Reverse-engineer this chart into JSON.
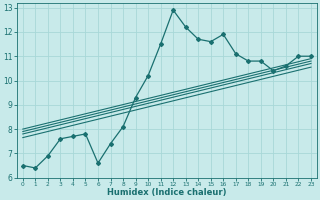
{
  "xlabel": "Humidex (Indice chaleur)",
  "ylabel": "",
  "bg_color": "#c8eaea",
  "grid_color": "#a8d8d8",
  "line_color": "#1a7070",
  "xlim": [
    -0.5,
    23.5
  ],
  "ylim": [
    6,
    13.2
  ],
  "yticks": [
    6,
    7,
    8,
    9,
    10,
    11,
    12,
    13
  ],
  "xticks": [
    0,
    1,
    2,
    3,
    4,
    5,
    6,
    7,
    8,
    9,
    10,
    11,
    12,
    13,
    14,
    15,
    16,
    17,
    18,
    19,
    20,
    21,
    22,
    23
  ],
  "main_x": [
    0,
    1,
    2,
    3,
    4,
    5,
    6,
    7,
    8,
    9,
    10,
    11,
    12,
    13,
    14,
    15,
    16,
    17,
    18,
    19,
    20,
    21,
    22,
    23
  ],
  "main_y": [
    6.5,
    6.4,
    6.9,
    7.6,
    7.7,
    7.8,
    6.6,
    7.4,
    8.1,
    9.3,
    10.2,
    11.5,
    12.9,
    12.2,
    11.7,
    11.6,
    11.9,
    11.1,
    10.8,
    10.8,
    10.4,
    10.6,
    11.0,
    11.0
  ],
  "reg_lines": [
    {
      "x": [
        0,
        23
      ],
      "y": [
        7.65,
        10.55
      ]
    },
    {
      "x": [
        0,
        23
      ],
      "y": [
        7.8,
        10.7
      ]
    },
    {
      "x": [
        0,
        23
      ],
      "y": [
        7.9,
        10.8
      ]
    },
    {
      "x": [
        0,
        23
      ],
      "y": [
        8.0,
        10.9
      ]
    }
  ]
}
